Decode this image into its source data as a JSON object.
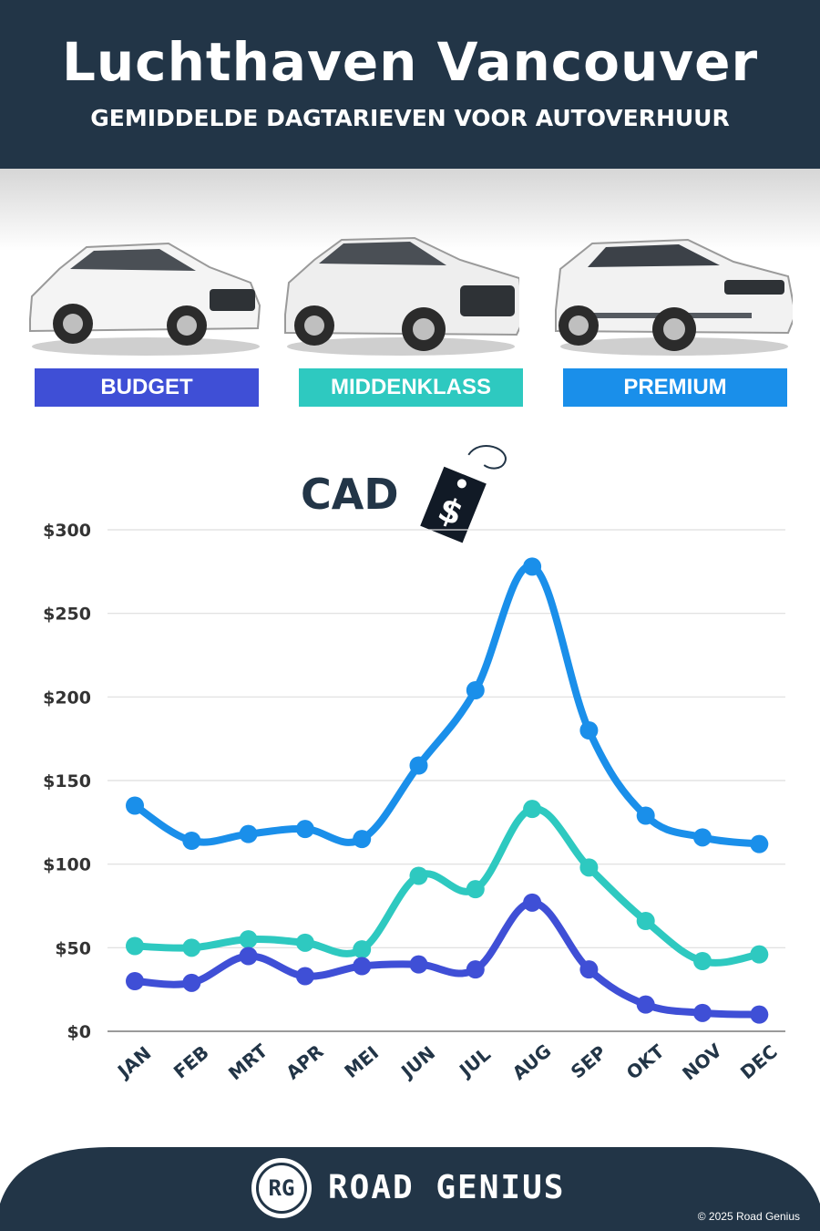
{
  "header": {
    "title": "Luchthaven Vancouver",
    "subtitle": "GEMIDDELDE DAGTARIEVEN VOOR AUTOVERHUUR"
  },
  "categories": [
    {
      "label": "BUDGET",
      "color": "#3f4fd6"
    },
    {
      "label": "MIDDENKLASS",
      "color": "#2ec9c0"
    },
    {
      "label": "PREMIUM",
      "color": "#1a8fea"
    }
  ],
  "currency_label": "CAD",
  "price_tag_symbol": "$",
  "chart_data": {
    "type": "line",
    "categories": [
      "JAN",
      "FEB",
      "MRT",
      "APR",
      "MEI",
      "JUN",
      "JUL",
      "AUG",
      "SEP",
      "OKT",
      "NOV",
      "DEC"
    ],
    "yticks": [
      "$0",
      "$50",
      "$100",
      "$150",
      "$200",
      "$250",
      "$300"
    ],
    "ylim": [
      0,
      300
    ],
    "grid": true,
    "series": [
      {
        "name": "PREMIUM",
        "color": "#1a8fea",
        "values": [
          135,
          114,
          118,
          121,
          115,
          159,
          204,
          278,
          180,
          129,
          116,
          112
        ]
      },
      {
        "name": "MIDDENKLASS",
        "color": "#2ec9c0",
        "values": [
          51,
          50,
          55,
          53,
          49,
          93,
          85,
          133,
          98,
          66,
          42,
          46
        ]
      },
      {
        "name": "BUDGET",
        "color": "#3f4fd6",
        "values": [
          30,
          29,
          45,
          33,
          39,
          40,
          37,
          77,
          37,
          16,
          11,
          10
        ]
      }
    ]
  },
  "footer": {
    "logo_text": "RG",
    "brand": "ROAD GENIUS",
    "copyright": "© 2025 Road Genius"
  }
}
